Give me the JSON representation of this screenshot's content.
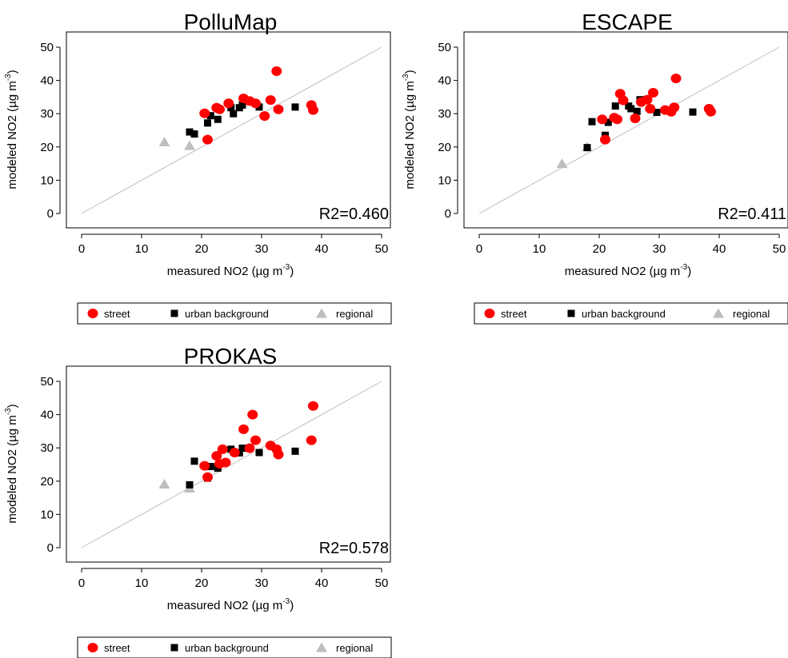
{
  "colors": {
    "street": "#ff0000",
    "urban_background": "#000000",
    "regional": "#bebebe",
    "diagonal": "#bebebe"
  },
  "chart_data": [
    {
      "type": "scatter",
      "title": "PolluMap",
      "xlabel": "measured NO2 (µg m",
      "xlabel_sup": "-3",
      "xlabel_end": ")",
      "ylabel": "modeled NO2 (µg m",
      "ylabel_sup": "-3",
      "ylabel_end": ")",
      "xlim": [
        0,
        50
      ],
      "ylim": [
        0,
        50
      ],
      "xticks": [
        "0",
        "10",
        "20",
        "30",
        "40",
        "50"
      ],
      "yticks": [
        "0",
        "10",
        "20",
        "30",
        "40",
        "50"
      ],
      "r2": "R2=0.460",
      "reference_line": "1:1",
      "legend": [
        "street",
        "urban background",
        "regional"
      ],
      "series": [
        {
          "name": "street",
          "marker": "circle",
          "x": [
            20.5,
            21,
            22.5,
            23,
            24.5,
            27,
            28,
            29,
            30.5,
            31.5,
            32.5,
            32.8,
            38.3,
            38.6
          ],
          "y": [
            30.1,
            22.2,
            31.8,
            31.3,
            33.1,
            34.6,
            33.8,
            33.1,
            29.3,
            34.1,
            42.8,
            31.3,
            32.6,
            31.1
          ]
        },
        {
          "name": "urban background",
          "marker": "square",
          "x": [
            18,
            18.8,
            21,
            21.5,
            22.7,
            24.9,
            25.3,
            26.3,
            26.8,
            29.6,
            35.6
          ],
          "y": [
            24.5,
            23.9,
            27.2,
            29.4,
            28.3,
            31.8,
            30,
            31.8,
            32.6,
            32,
            32
          ]
        },
        {
          "name": "regional",
          "marker": "triangle",
          "x": [
            13.8,
            18
          ],
          "y": [
            21.5,
            20.4
          ]
        }
      ]
    },
    {
      "type": "scatter",
      "title": "ESCAPE",
      "xlabel": "measured NO2 (µg m",
      "xlabel_sup": "-3",
      "xlabel_end": ")",
      "ylabel": "modeled NO2 (µg m",
      "ylabel_sup": "-3",
      "ylabel_end": ")",
      "xlim": [
        0,
        50
      ],
      "ylim": [
        0,
        50
      ],
      "xticks": [
        "0",
        "10",
        "20",
        "30",
        "40",
        "50"
      ],
      "yticks": [
        "0",
        "10",
        "20",
        "30",
        "40",
        "50"
      ],
      "r2": "R2=0.411",
      "reference_line": "1:1",
      "legend": [
        "street",
        "urban background",
        "regional"
      ],
      "series": [
        {
          "name": "street",
          "marker": "circle",
          "x": [
            20.5,
            21,
            22.5,
            23,
            23.5,
            24,
            26,
            27,
            28,
            28.5,
            29,
            31,
            32,
            32.5,
            32.8,
            38.3,
            38.6
          ],
          "y": [
            28.3,
            22.2,
            28.8,
            28.3,
            36,
            34,
            28.6,
            33.5,
            34.2,
            31.5,
            36.3,
            31.1,
            30.6,
            31.9,
            40.6,
            31.5,
            30.6
          ]
        },
        {
          "name": "urban background",
          "marker": "square",
          "x": [
            18,
            18.8,
            21,
            21.5,
            22.7,
            24.9,
            25.3,
            26.3,
            26.8,
            29.6,
            35.6
          ],
          "y": [
            19.8,
            27.6,
            23.5,
            27.4,
            32.3,
            32.3,
            31.5,
            30.7,
            34.2,
            30.4,
            30.5
          ]
        },
        {
          "name": "regional",
          "marker": "triangle",
          "x": [
            13.8,
            18
          ],
          "y": [
            15,
            20
          ]
        }
      ]
    },
    {
      "type": "scatter",
      "title": "PROKAS",
      "xlabel": "measured NO2 (µg m",
      "xlabel_sup": "-3",
      "xlabel_end": ")",
      "ylabel": "modeled NO2 (µg m",
      "ylabel_sup": "-3",
      "ylabel_end": ")",
      "xlim": [
        0,
        50
      ],
      "ylim": [
        0,
        50
      ],
      "xticks": [
        "0",
        "10",
        "20",
        "30",
        "40",
        "50"
      ],
      "yticks": [
        "0",
        "10",
        "20",
        "30",
        "40",
        "50"
      ],
      "r2": "R2=0.578",
      "reference_line": "1:1",
      "legend": [
        "street",
        "urban background",
        "regional"
      ],
      "series": [
        {
          "name": "street",
          "marker": "circle",
          "x": [
            20.5,
            21,
            22.5,
            23,
            23.5,
            24,
            25.5,
            27,
            28,
            28.5,
            29,
            31.5,
            32.5,
            32.8,
            38.3,
            38.6
          ],
          "y": [
            24.6,
            21.2,
            27.6,
            25.2,
            29.6,
            25.6,
            28.6,
            35.6,
            29.9,
            40,
            32.3,
            30.7,
            29.6,
            28,
            32.3,
            42.6
          ]
        },
        {
          "name": "urban background",
          "marker": "square",
          "x": [
            18,
            18.8,
            21,
            21.5,
            22.7,
            24.9,
            26.3,
            26.8,
            29.6,
            35.6
          ],
          "y": [
            18.9,
            26,
            20.9,
            24.4,
            23.9,
            29.6,
            28.5,
            29.9,
            28.6,
            29
          ]
        },
        {
          "name": "regional",
          "marker": "triangle",
          "x": [
            13.8,
            18
          ],
          "y": [
            19.1,
            17.9
          ]
        }
      ]
    }
  ]
}
